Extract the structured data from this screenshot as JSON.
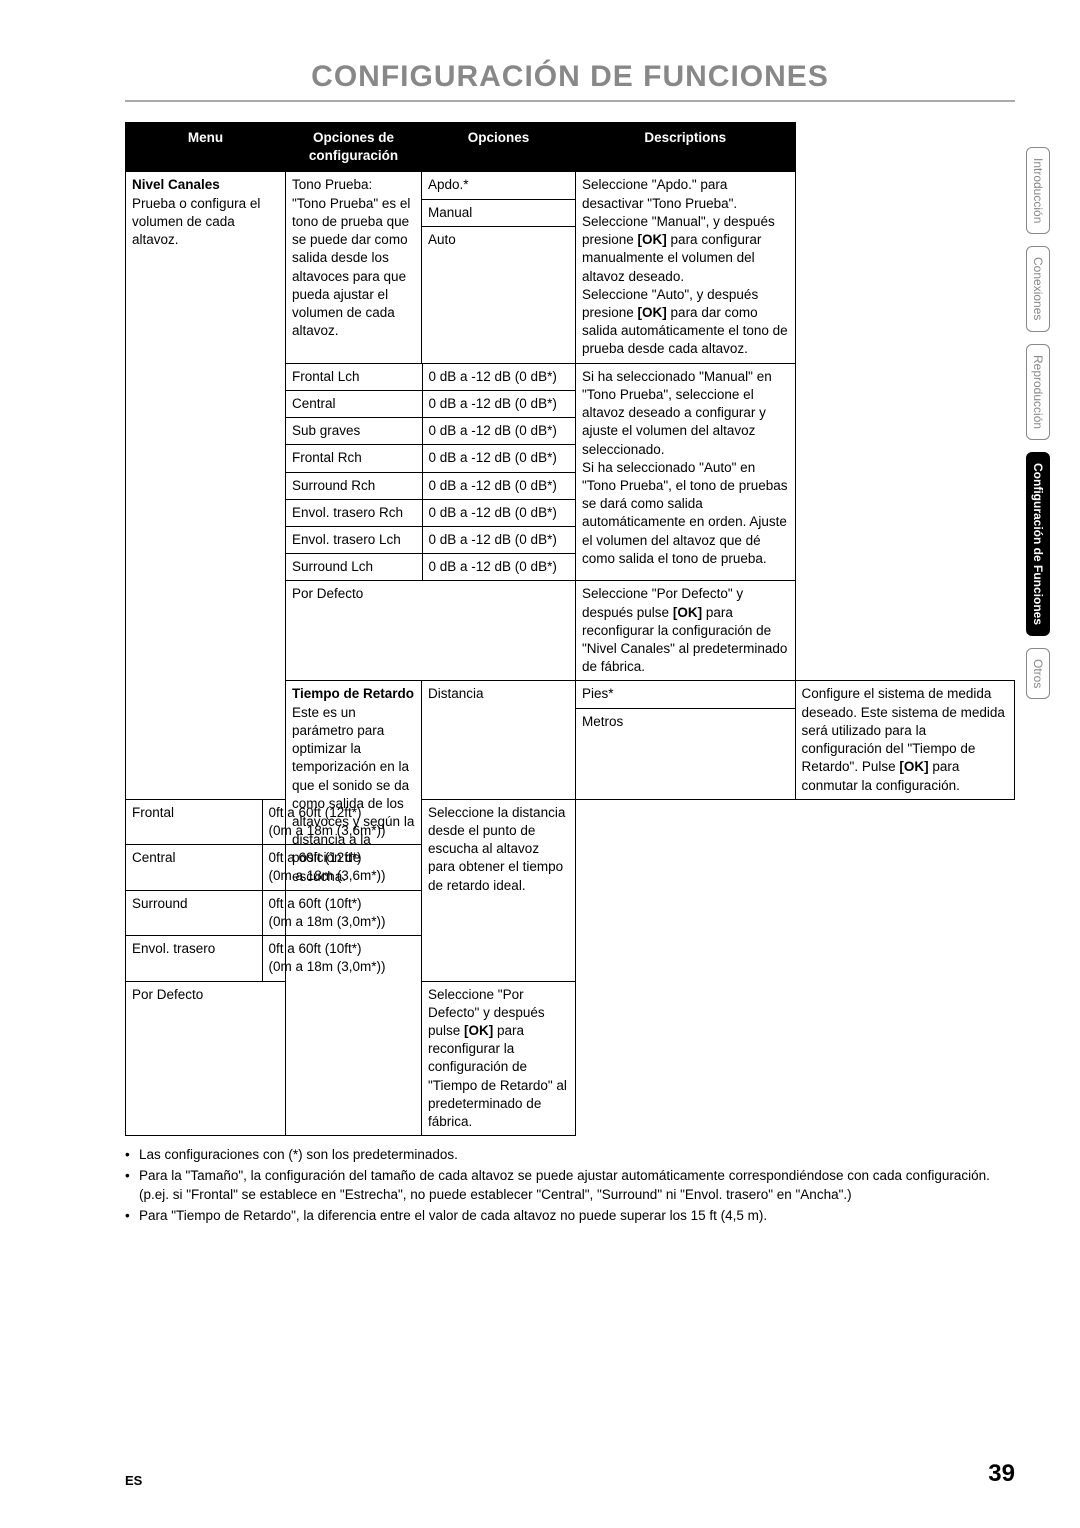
{
  "title": "CONFIGURACIÓN DE FUNCIONES",
  "headers": {
    "menu": "Menu",
    "config": "Opciones de configuración",
    "options": "Opciones",
    "desc": "Descriptions"
  },
  "menu1_head": "Nivel Canales",
  "menu1_body": "Prueba o configura el volumen de cada altavoz.",
  "tono_cfg_head": "Tono Prueba:",
  "tono_cfg_body": "\"Tono Prueba\" es el tono de prueba que se puede dar como salida desde los altavoces para que pueda ajustar el volumen de cada altavoz.",
  "tono_opt1": "Apdo.*",
  "tono_opt2": "Manual",
  "tono_opt3": "Auto",
  "tono_desc_l1": "Seleccione \"Apdo.\" para desactivar \"Tono Prueba\".",
  "tono_desc_l2a": "Seleccione \"Manual\", y después presione ",
  "tono_desc_l2b": "[OK]",
  "tono_desc_l2c": " para configurar manualmente el volumen del altavoz deseado.",
  "tono_desc_l3a": "Seleccione \"Auto\", y después presione ",
  "tono_desc_l3b": "[OK]",
  "tono_desc_l3c": " para dar como salida automáticamente el tono de prueba desde cada altavoz.",
  "ch_rows": [
    {
      "name": "Frontal Lch",
      "opt": "0 dB a -12 dB (0 dB*)"
    },
    {
      "name": "Central",
      "opt": "0 dB a -12 dB (0 dB*)"
    },
    {
      "name": "Sub graves",
      "opt": "0 dB a -12 dB (0 dB*)"
    },
    {
      "name": "Frontal Rch",
      "opt": "0 dB a -12 dB (0 dB*)"
    },
    {
      "name": "Surround Rch",
      "opt": "0 dB a -12 dB (0 dB*)"
    },
    {
      "name": "Envol. trasero Rch",
      "opt": "0 dB a -12 dB (0 dB*)"
    },
    {
      "name": "Envol. trasero Lch",
      "opt": "0 dB a -12 dB (0 dB*)"
    },
    {
      "name": "Surround Lch",
      "opt": "0 dB a -12 dB (0 dB*)"
    }
  ],
  "ch_desc_l1": "Si ha seleccionado \"Manual\" en \"Tono Prueba\", seleccione el altavoz deseado a configurar y ajuste el volumen del altavoz seleccionado.",
  "ch_desc_l2": "Si ha seleccionado \"Auto\" en \"Tono Prueba\", el tono de pruebas se dará como salida automáticamente en orden. Ajuste el volumen del altavoz que dé como salida el tono de prueba.",
  "pd1_name": "Por Defecto",
  "pd1_desc_a": "Seleccione \"Por Defecto\" y después pulse ",
  "pd1_desc_b": "[OK]",
  "pd1_desc_c": " para reconfigurar la configuración de \"Nivel Canales\" al predeterminado de fábrica.",
  "menu2_head": "Tiempo de Retardo",
  "menu2_body": "Este es un parámetro para optimizar la temporización en la que el sonido se da como salida de los altavoces y según la distancia a la posición de escucha.",
  "dist_name": "Distancia",
  "dist_opt1": "Pies*",
  "dist_opt2": "Metros",
  "dist_desc_a": "Configure el sistema de medida deseado. Este sistema de medida será utilizado para la configuración del \"Tiempo de Retardo\". Pulse ",
  "dist_desc_b": "[OK]",
  "dist_desc_c": " para conmutar la configuración.",
  "sp_rows": [
    {
      "name": "Frontal",
      "l1": "0ft a 60ft (12ft*)",
      "l2": "(0m a 18m (3,6m*))"
    },
    {
      "name": "Central",
      "l1": "0ft a 60ft (12ft*)",
      "l2": "(0m a 18m (3,6m*))"
    },
    {
      "name": "Surround",
      "l1": "0ft a 60ft (10ft*)",
      "l2": "(0m a 18m (3,0m*))"
    },
    {
      "name": "Envol. trasero",
      "l1": "0ft a 60ft (10ft*)",
      "l2": "(0m a 18m (3,0m*))"
    }
  ],
  "sp_desc": "Seleccione la distancia desde el punto de escucha al altavoz para obtener el tiempo de retardo ideal.",
  "pd2_name": "Por Defecto",
  "pd2_desc_a": "Seleccione \"Por Defecto\" y después pulse ",
  "pd2_desc_b": "[OK]",
  "pd2_desc_c": " para reconfigurar la configuración de \"Tiempo de Retardo\" al predeterminado de fábrica.",
  "notes": [
    "Las configuraciones con (*) son los predeterminados.",
    "Para la \"Tamaño\", la configuración del tamaño de cada altavoz se puede ajustar automáticamente correspondiéndose con cada configuración. (p.ej. si \"Frontal\" se establece en \"Estrecha\", no puede establecer \"Central\", \"Surround\" ni \"Envol. trasero\" en \"Ancha\".)",
    "Para \"Tiempo de Retardo\", la diferencia entre el valor de cada altavoz no puede superar los 15 ft (4,5 m)."
  ],
  "tabs": [
    {
      "label": "Introducción",
      "active": false
    },
    {
      "label": "Conexiones",
      "active": false
    },
    {
      "label": "Reproducción",
      "active": false
    },
    {
      "label": "Configuración de Funciones",
      "active": true
    },
    {
      "label": "Otros",
      "active": false
    }
  ],
  "footer": {
    "lang": "ES",
    "page": "39"
  },
  "colors": {
    "title": "#888888",
    "border": "#000000",
    "header_bg": "#000000",
    "header_fg": "#ffffff",
    "tab_border": "#888888"
  }
}
